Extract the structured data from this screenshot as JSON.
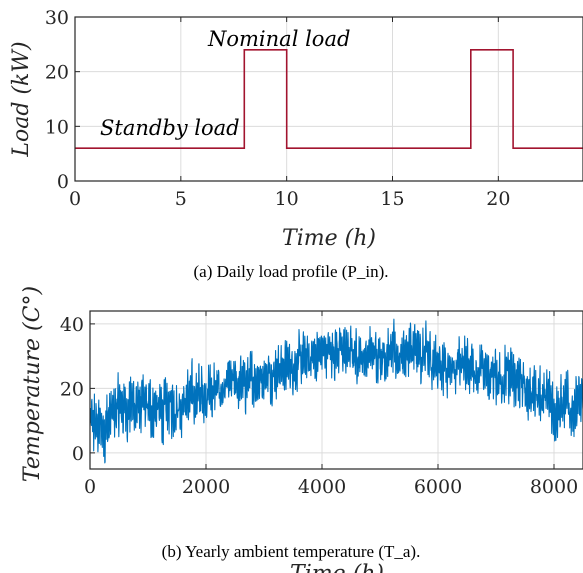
{
  "chart_data": [
    {
      "type": "line",
      "caption": "(a)  Daily load profile (P_in).",
      "xlabel": "Time (h)",
      "ylabel": "Load (kW)",
      "xlim": [
        0,
        24
      ],
      "ylim": [
        0,
        30
      ],
      "xticks": [
        0,
        5,
        10,
        15,
        20
      ],
      "yticks": [
        0,
        10,
        20,
        30
      ],
      "grid": true,
      "color": "#a2142f",
      "annotations": [
        "Nominal load",
        "Standby load"
      ],
      "series": [
        {
          "x": [
            0,
            8,
            8,
            10,
            10,
            18.7,
            18.7,
            20.7,
            20.7,
            24
          ],
          "y": [
            6,
            6,
            24,
            24,
            6,
            6,
            24,
            24,
            6,
            6
          ]
        }
      ]
    },
    {
      "type": "line",
      "caption": "(b)  Yearly ambient temperature (T_a).",
      "xlabel": "Time (h)",
      "ylabel": "Temperature (C°)",
      "xlim": [
        0,
        8500
      ],
      "ylim": [
        -5,
        44
      ],
      "xticks": [
        0,
        2000,
        4000,
        6000,
        8000
      ],
      "yticks": [
        0,
        20,
        40
      ],
      "grid": true,
      "color": "#0072bd",
      "series": [
        {
          "x": [
            0,
            250,
            500,
            750,
            1000,
            1250,
            1500,
            1750,
            2000,
            2250,
            2500,
            2750,
            3000,
            3250,
            3500,
            3750,
            4000,
            4250,
            4500,
            4750,
            5000,
            5250,
            5500,
            5750,
            6000,
            6250,
            6500,
            6750,
            7000,
            7250,
            7500,
            7750,
            8000,
            8250,
            8500
          ],
          "y": [
            9,
            8,
            14,
            15,
            14,
            13,
            15,
            17,
            19,
            19,
            21,
            22,
            24,
            26,
            27,
            29,
            31,
            32,
            31,
            30,
            31,
            30,
            31,
            30,
            28,
            27,
            27,
            25,
            24,
            23,
            20,
            18,
            15,
            14,
            14
          ],
          "amplitude": [
            8,
            10,
            9,
            9,
            8,
            8,
            8,
            8,
            8,
            8,
            8,
            7,
            7,
            7,
            7,
            7,
            7,
            7,
            7,
            7,
            7,
            8,
            8,
            8,
            8,
            7,
            7,
            7,
            8,
            8,
            8,
            8,
            9,
            9,
            8
          ]
        }
      ]
    }
  ]
}
